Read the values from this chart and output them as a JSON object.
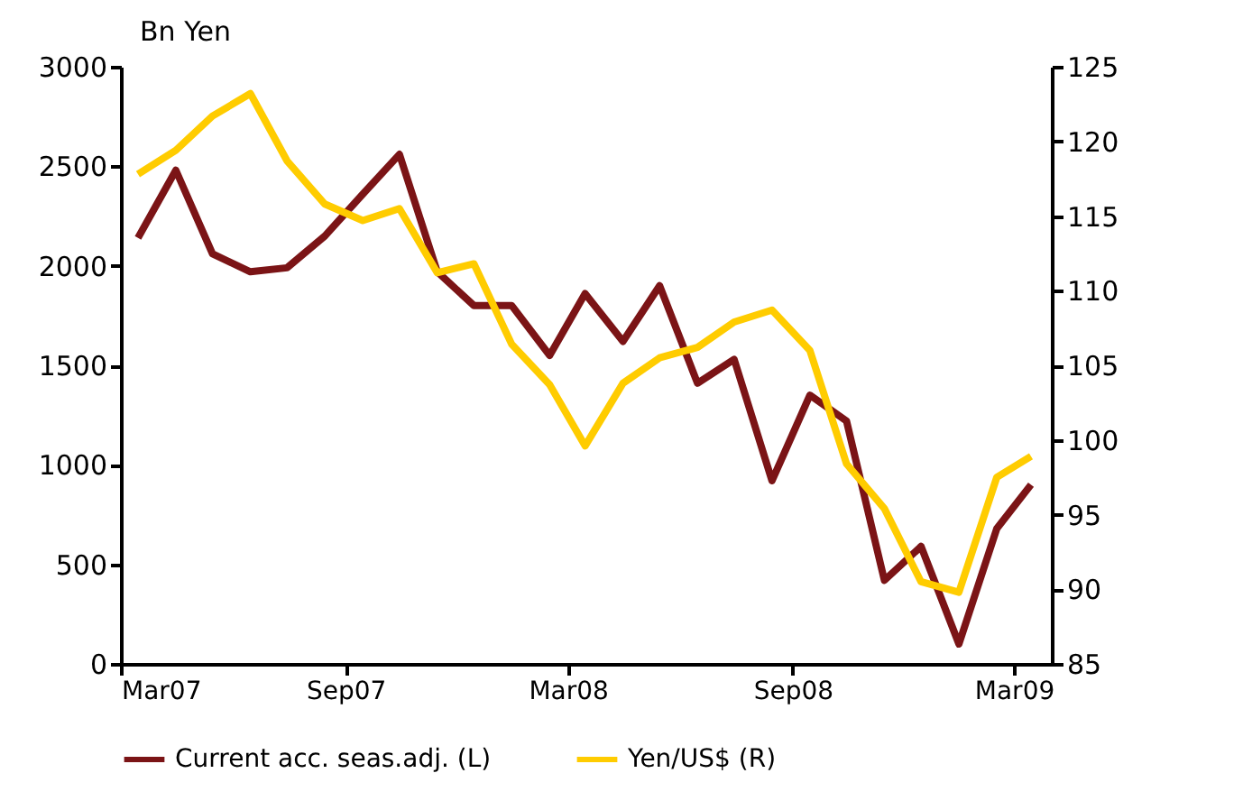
{
  "chart_data": {
    "type": "line",
    "ylabel": "Bn Yen",
    "x": [
      "2007-03-15",
      "2007-04-15",
      "2007-05-15",
      "2007-06-15",
      "2007-07-15",
      "2007-08-15",
      "2007-09-15",
      "2007-10-15",
      "2007-11-15",
      "2007-12-15",
      "2008-01-15",
      "2008-02-15",
      "2008-03-15",
      "2008-04-15",
      "2008-05-15",
      "2008-06-15",
      "2008-07-15",
      "2008-08-15",
      "2008-09-15",
      "2008-10-15",
      "2008-11-15",
      "2008-12-15",
      "2009-01-15",
      "2009-02-15",
      "2009-03-15"
    ],
    "xlim": [
      "2007-03-01",
      "2009-04-01"
    ],
    "xticks": [
      {
        "value": "2007-03-01",
        "label": "Mar07"
      },
      {
        "value": "2007-09-01",
        "label": "Sep07"
      },
      {
        "value": "2008-03-01",
        "label": "Mar08"
      },
      {
        "value": "2008-09-01",
        "label": "Sep08"
      },
      {
        "value": "2009-03-01",
        "label": "Mar09"
      }
    ],
    "ylim": [
      0,
      3000
    ],
    "yticks": [
      0,
      500,
      1000,
      1500,
      2000,
      2500,
      3000
    ],
    "y2lim": [
      85,
      125
    ],
    "y2ticks": [
      85,
      90,
      95,
      100,
      105,
      110,
      115,
      120,
      125
    ],
    "series": [
      {
        "name": "Current acc. seas.adj. (L)",
        "color": "#7b1416",
        "values": [
          2140,
          2480,
          2060,
          1970,
          1990,
          2150,
          2360,
          2560,
          1970,
          1800,
          1800,
          1550,
          1860,
          1620,
          1900,
          1410,
          1530,
          920,
          1350,
          1220,
          420,
          590,
          100,
          680,
          900
        ]
      },
      {
        "name": "Yen/US$ (R)",
        "color": "#ffcc00",
        "axis": "y2",
        "values": [
          117.8,
          119.4,
          121.7,
          123.2,
          118.7,
          115.8,
          114.7,
          115.5,
          111.2,
          111.8,
          106.4,
          103.7,
          99.6,
          103.8,
          105.5,
          106.2,
          107.9,
          108.7,
          106.0,
          98.4,
          95.4,
          90.5,
          89.8,
          97.5,
          98.9
        ]
      }
    ],
    "grid": false,
    "legend": "bottom",
    "line_style": "solid",
    "marker": "none"
  }
}
